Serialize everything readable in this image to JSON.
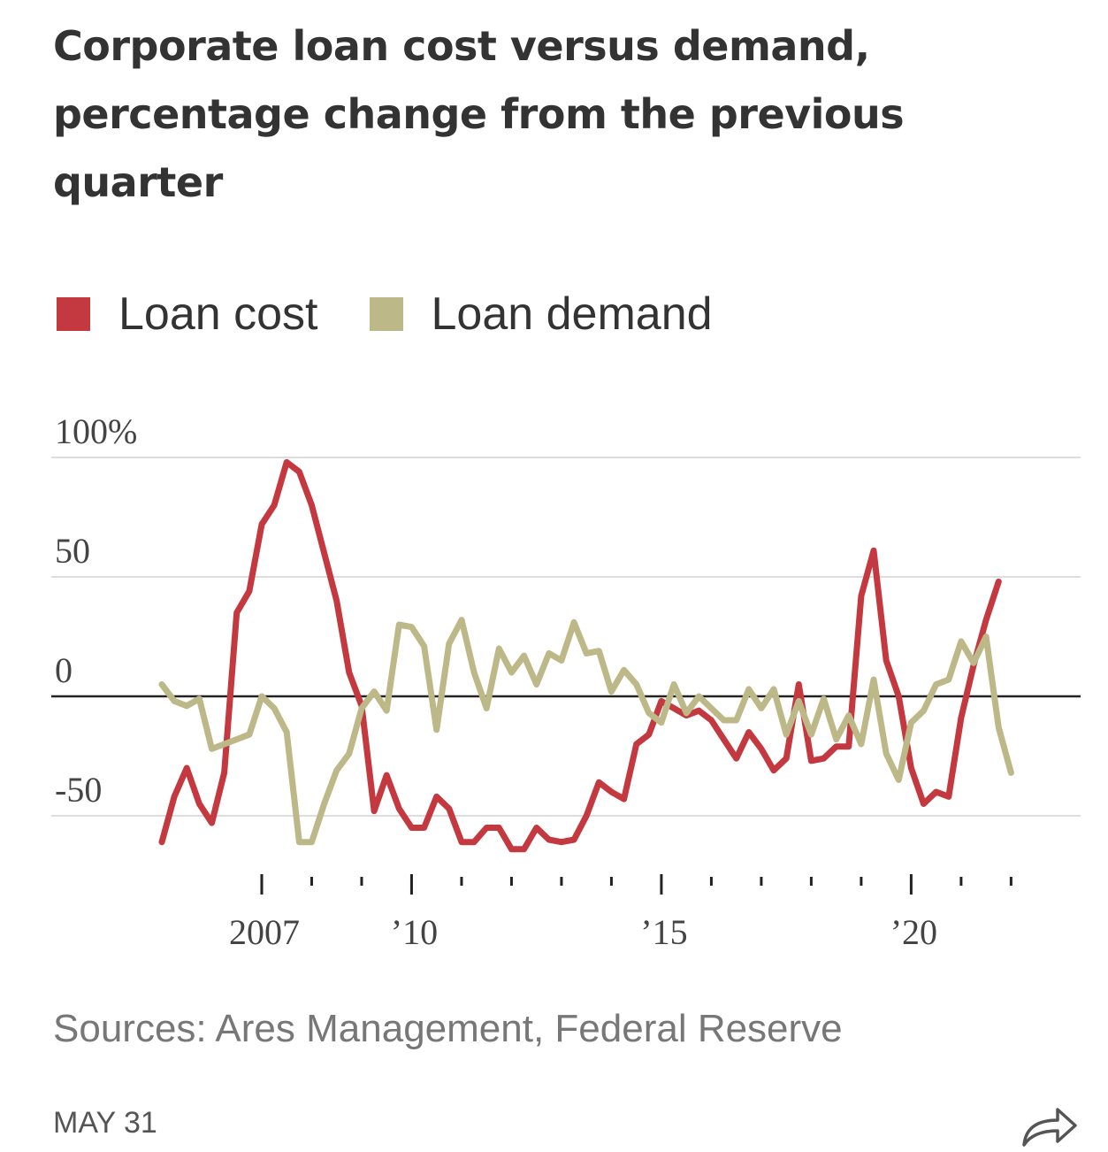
{
  "title": "Corporate loan cost versus demand, percentage change from the previous quarter",
  "legend": [
    {
      "label": "Loan cost",
      "color": "#c4383f"
    },
    {
      "label": "Loan demand",
      "color": "#bdb888"
    }
  ],
  "footer": {
    "source": "Sources: Ares Management, Federal Reserve",
    "date": "MAY 31",
    "share_icon": "share-arrow-icon"
  },
  "chart_data": {
    "type": "line",
    "title": "Corporate loan cost versus demand, percentage change from the previous quarter",
    "xlabel": "",
    "ylabel": "",
    "xlim": [
      2005.0,
      2023.25
    ],
    "ylim": [
      -70,
      100
    ],
    "y_ticks": [
      {
        "value": 100,
        "label": "100%"
      },
      {
        "value": 50,
        "label": "50"
      },
      {
        "value": 0,
        "label": "0"
      },
      {
        "value": -50,
        "label": "-50"
      }
    ],
    "x_ticks": [
      {
        "value": 2007,
        "label": "2007"
      },
      {
        "value": 2010,
        "label": "’10"
      },
      {
        "value": 2015,
        "label": "’15"
      },
      {
        "value": 2020,
        "label": "’20"
      }
    ],
    "grid": true,
    "zero_line": true,
    "series": [
      {
        "name": "Loan cost",
        "color": "#c4383f",
        "x": [
          2005.0,
          2005.25,
          2005.5,
          2005.75,
          2006.0,
          2006.25,
          2006.5,
          2006.75,
          2007.0,
          2007.25,
          2007.5,
          2007.75,
          2008.0,
          2008.25,
          2008.5,
          2008.75,
          2009.0,
          2009.25,
          2009.5,
          2009.75,
          2010.0,
          2010.25,
          2010.5,
          2010.75,
          2011.0,
          2011.25,
          2011.5,
          2011.75,
          2012.0,
          2012.25,
          2012.5,
          2012.75,
          2013.0,
          2013.25,
          2013.5,
          2013.75,
          2014.0,
          2014.25,
          2014.5,
          2014.75,
          2015.0,
          2015.25,
          2015.5,
          2015.75,
          2016.0,
          2016.25,
          2016.5,
          2016.75,
          2017.0,
          2017.25,
          2017.5,
          2017.75,
          2018.0,
          2018.25,
          2018.5,
          2018.75,
          2019.0,
          2019.25,
          2019.5,
          2019.75,
          2020.0,
          2020.25,
          2020.5,
          2020.75,
          2021.0,
          2021.25,
          2021.5,
          2021.75,
          2022.0,
          2022.25,
          2022.5,
          2022.75,
          2023.0,
          2023.25
        ],
        "values": [
          -61,
          -42,
          -30,
          -45,
          -53,
          -32,
          35,
          44,
          72,
          80,
          98,
          94,
          80,
          60,
          40,
          10,
          -4,
          -48,
          -33,
          -47,
          -55,
          -55,
          -42,
          -47,
          -61,
          -61,
          -55,
          -55,
          -64,
          -64,
          -55,
          -60,
          -61,
          -60,
          -50,
          -36,
          -40,
          -43,
          -20,
          -16,
          -2,
          -5,
          -8,
          -6,
          -10,
          -18,
          -26,
          -15,
          -22,
          -31,
          -26,
          5,
          -27,
          -26,
          -21,
          -21,
          42,
          61,
          15,
          0,
          -30,
          -45,
          -40,
          -42,
          -9,
          13,
          32,
          48,
          null,
          null,
          null,
          null,
          null,
          null
        ]
      },
      {
        "name": "Loan demand",
        "color": "#bdb888",
        "x": [
          2005.0,
          2005.25,
          2005.5,
          2005.75,
          2006.0,
          2006.25,
          2006.5,
          2006.75,
          2007.0,
          2007.25,
          2007.5,
          2007.75,
          2008.0,
          2008.25,
          2008.5,
          2008.75,
          2009.0,
          2009.25,
          2009.5,
          2009.75,
          2010.0,
          2010.25,
          2010.5,
          2010.75,
          2011.0,
          2011.25,
          2011.5,
          2011.75,
          2012.0,
          2012.25,
          2012.5,
          2012.75,
          2013.0,
          2013.25,
          2013.5,
          2013.75,
          2014.0,
          2014.25,
          2014.5,
          2014.75,
          2015.0,
          2015.25,
          2015.5,
          2015.75,
          2016.0,
          2016.25,
          2016.5,
          2016.75,
          2017.0,
          2017.25,
          2017.5,
          2017.75,
          2018.0,
          2018.25,
          2018.5,
          2018.75,
          2019.0,
          2019.25,
          2019.5,
          2019.75,
          2020.0,
          2020.25,
          2020.5,
          2020.75,
          2021.0,
          2021.25,
          2021.5,
          2021.75,
          2022.0,
          2022.25,
          2022.5,
          2022.75,
          2023.0,
          2023.25
        ],
        "values": [
          5,
          -2,
          -4,
          -1,
          -22,
          -20,
          -18,
          -16,
          0,
          -5,
          -15,
          -61,
          -61,
          -45,
          -31,
          -24,
          -5,
          2,
          -6,
          30,
          29,
          21,
          -14,
          22,
          32,
          10,
          -5,
          20,
          10,
          17,
          5,
          18,
          15,
          31,
          18,
          19,
          2,
          11,
          5,
          -7,
          -11,
          5,
          -7,
          0,
          -5,
          -10,
          -10,
          3,
          -5,
          3,
          -16,
          -2,
          -16,
          -1,
          -18,
          -8,
          -20,
          7,
          -24,
          -35,
          -11,
          -6,
          5,
          7,
          23,
          14,
          25,
          -13,
          -32,
          null,
          null,
          null,
          null,
          null
        ]
      }
    ]
  }
}
